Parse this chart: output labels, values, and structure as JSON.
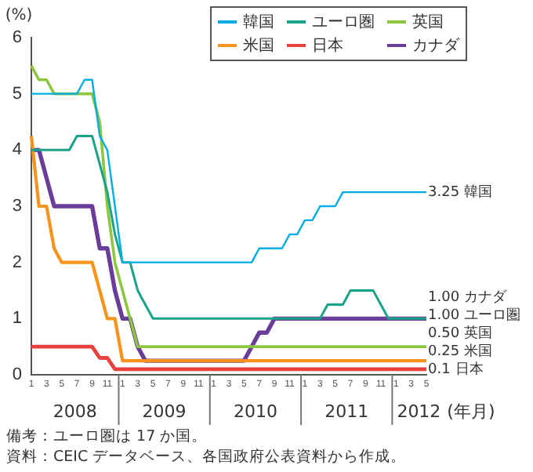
{
  "chart_data": {
    "type": "line",
    "xlabel": "(年月)",
    "ylabel": "(%)",
    "categories": [
      "1",
      null,
      "3",
      null,
      "5",
      null,
      "7",
      null,
      "9",
      null,
      "11",
      null,
      "1",
      null,
      "3",
      null,
      "5",
      null,
      "7",
      null,
      "9",
      null,
      "11",
      null,
      "1",
      null,
      "3",
      null,
      "5",
      null,
      "7",
      null,
      "9",
      null,
      "11",
      null,
      "1",
      null,
      "3",
      null,
      "5",
      null,
      "7",
      null,
      "9",
      null,
      "11",
      null,
      "1",
      null,
      "3",
      null,
      "5"
    ],
    "series": [
      {
        "name": "韓国",
        "color": "#00aee5",
        "values": [
          5,
          5,
          5,
          5,
          5,
          5,
          5,
          5.25,
          5.25,
          4.25,
          4,
          3,
          2,
          2,
          2,
          2,
          2,
          2,
          2,
          2,
          2,
          2,
          2,
          2,
          2,
          2,
          2,
          2,
          2,
          2,
          2.25,
          2.25,
          2.25,
          2.25,
          2.5,
          2.5,
          2.75,
          2.75,
          3,
          3,
          3,
          3.25,
          3.25,
          3.25,
          3.25,
          3.25,
          3.25,
          3.25,
          3.25,
          3.25,
          3.25,
          3.25,
          3.25
        ],
        "value_labels": [
          null,
          null,
          null,
          null,
          null,
          null,
          null,
          null,
          null,
          null,
          null,
          null,
          null,
          null,
          null,
          null,
          null,
          null,
          null,
          null,
          null,
          null,
          null,
          null,
          null,
          null,
          null,
          null,
          null,
          null,
          null,
          null,
          null,
          null,
          null,
          null,
          null,
          null,
          null,
          null,
          null,
          null,
          null,
          null,
          null,
          null,
          null,
          null,
          null,
          null,
          null,
          null,
          "3.25"
        ]
      },
      {
        "name": "ユーロ圏",
        "color": "#1aa38a",
        "values": [
          4,
          4,
          4,
          4,
          4,
          4,
          4.25,
          4.25,
          4.25,
          3.75,
          3.25,
          2.5,
          2,
          2,
          1.5,
          1.25,
          1,
          1,
          1,
          1,
          1,
          1,
          1,
          1,
          1,
          1,
          1,
          1,
          1,
          1,
          1,
          1,
          1,
          1,
          1,
          1,
          1,
          1,
          1,
          1.25,
          1.25,
          1.25,
          1.5,
          1.5,
          1.5,
          1.5,
          1.25,
          1,
          1,
          1,
          1,
          1,
          1
        ],
        "value_labels": [
          null,
          null,
          null,
          null,
          null,
          null,
          null,
          null,
          null,
          null,
          null,
          null,
          null,
          null,
          null,
          null,
          null,
          null,
          null,
          null,
          null,
          null,
          null,
          null,
          null,
          null,
          null,
          null,
          null,
          null,
          null,
          null,
          null,
          null,
          null,
          null,
          null,
          null,
          null,
          null,
          null,
          null,
          null,
          null,
          null,
          null,
          null,
          null,
          null,
          null,
          null,
          null,
          "1.00"
        ]
      },
      {
        "name": "英国",
        "color": "#8dc63f",
        "values": [
          5.5,
          5.25,
          5.25,
          5,
          5,
          5,
          5,
          5,
          5,
          4.5,
          3,
          2,
          1.5,
          1,
          0.5,
          0.5,
          0.5,
          0.5,
          0.5,
          0.5,
          0.5,
          0.5,
          0.5,
          0.5,
          0.5,
          0.5,
          0.5,
          0.5,
          0.5,
          0.5,
          0.5,
          0.5,
          0.5,
          0.5,
          0.5,
          0.5,
          0.5,
          0.5,
          0.5,
          0.5,
          0.5,
          0.5,
          0.5,
          0.5,
          0.5,
          0.5,
          0.5,
          0.5,
          0.5,
          0.5,
          0.5,
          0.5,
          0.5
        ],
        "value_labels": [
          null,
          null,
          null,
          null,
          null,
          null,
          null,
          null,
          null,
          null,
          null,
          null,
          null,
          null,
          null,
          null,
          null,
          null,
          null,
          null,
          null,
          null,
          null,
          null,
          null,
          null,
          null,
          null,
          null,
          null,
          null,
          null,
          null,
          null,
          null,
          null,
          null,
          null,
          null,
          null,
          null,
          null,
          null,
          null,
          null,
          null,
          null,
          null,
          null,
          null,
          null,
          null,
          "0.50"
        ]
      },
      {
        "name": "米国",
        "color": "#f7941d",
        "values": [
          4.25,
          3,
          3,
          2.25,
          2,
          2,
          2,
          2,
          2,
          1.5,
          1,
          1,
          0.25,
          0.25,
          0.25,
          0.25,
          0.25,
          0.25,
          0.25,
          0.25,
          0.25,
          0.25,
          0.25,
          0.25,
          0.25,
          0.25,
          0.25,
          0.25,
          0.25,
          0.25,
          0.25,
          0.25,
          0.25,
          0.25,
          0.25,
          0.25,
          0.25,
          0.25,
          0.25,
          0.25,
          0.25,
          0.25,
          0.25,
          0.25,
          0.25,
          0.25,
          0.25,
          0.25,
          0.25,
          0.25,
          0.25,
          0.25,
          0.25
        ],
        "value_labels": [
          null,
          null,
          null,
          null,
          null,
          null,
          null,
          null,
          null,
          null,
          null,
          null,
          null,
          null,
          null,
          null,
          null,
          null,
          null,
          null,
          null,
          null,
          null,
          null,
          null,
          null,
          null,
          null,
          null,
          null,
          null,
          null,
          null,
          null,
          null,
          null,
          null,
          null,
          null,
          null,
          null,
          null,
          null,
          null,
          null,
          null,
          null,
          null,
          null,
          null,
          null,
          null,
          "0.25"
        ]
      },
      {
        "name": "日本",
        "color": "#e8423f",
        "values": [
          0.5,
          0.5,
          0.5,
          0.5,
          0.5,
          0.5,
          0.5,
          0.5,
          0.5,
          0.3,
          0.3,
          0.1,
          0.1,
          0.1,
          0.1,
          0.1,
          0.1,
          0.1,
          0.1,
          0.1,
          0.1,
          0.1,
          0.1,
          0.1,
          0.1,
          0.1,
          0.1,
          0.1,
          0.1,
          0.1,
          0.1,
          0.1,
          0.1,
          0.1,
          0.1,
          0.1,
          0.1,
          0.1,
          0.1,
          0.1,
          0.1,
          0.1,
          0.1,
          0.1,
          0.1,
          0.1,
          0.1,
          0.1,
          0.1,
          0.1,
          0.1,
          0.1,
          0.1
        ],
        "value_labels": [
          null,
          null,
          null,
          null,
          null,
          null,
          null,
          null,
          null,
          null,
          null,
          null,
          null,
          null,
          null,
          null,
          null,
          null,
          null,
          null,
          null,
          null,
          null,
          null,
          null,
          null,
          null,
          null,
          null,
          null,
          null,
          null,
          null,
          null,
          null,
          null,
          null,
          null,
          null,
          null,
          null,
          null,
          null,
          null,
          null,
          null,
          null,
          null,
          null,
          null,
          null,
          null,
          "0.1"
        ]
      },
      {
        "name": "カナダ",
        "color": "#6a3d9a",
        "values": [
          4,
          4,
          3.5,
          3,
          3,
          3,
          3,
          3,
          3,
          2.25,
          2.25,
          1.5,
          1,
          1,
          0.5,
          0.25,
          0.25,
          0.25,
          0.25,
          0.25,
          0.25,
          0.25,
          0.25,
          0.25,
          0.25,
          0.25,
          0.25,
          0.25,
          0.25,
          0.5,
          0.75,
          0.75,
          1,
          1,
          1,
          1,
          1,
          1,
          1,
          1,
          1,
          1,
          1,
          1,
          1,
          1,
          1,
          1,
          1,
          1,
          1,
          1,
          1
        ],
        "value_labels": [
          null,
          null,
          null,
          null,
          null,
          null,
          null,
          null,
          null,
          null,
          null,
          null,
          null,
          null,
          null,
          null,
          null,
          null,
          null,
          null,
          null,
          null,
          null,
          null,
          null,
          null,
          null,
          null,
          null,
          null,
          null,
          null,
          null,
          null,
          null,
          null,
          null,
          null,
          null,
          null,
          null,
          null,
          null,
          null,
          null,
          null,
          null,
          null,
          null,
          null,
          null,
          null,
          "1.00"
        ]
      }
    ],
    "ylim": [
      0,
      6
    ],
    "yticks": [
      0,
      1,
      2,
      3,
      4,
      5,
      6
    ],
    "legend": "top right",
    "marker": "none",
    "line_style": "solid",
    "annotations": [
      "2008",
      "2009",
      "2010",
      "2011",
      "2012",
      "備考：ユーロ圏は 17 か国。",
      "資料：CEIC データベース、各国政府公表資料から作成。"
    ]
  }
}
